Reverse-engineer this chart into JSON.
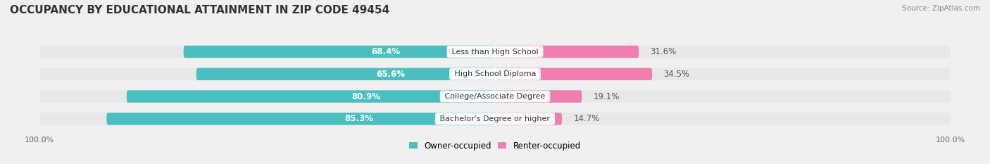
{
  "title": "OCCUPANCY BY EDUCATIONAL ATTAINMENT IN ZIP CODE 49454",
  "source": "Source: ZipAtlas.com",
  "categories": [
    "Less than High School",
    "High School Diploma",
    "College/Associate Degree",
    "Bachelor's Degree or higher"
  ],
  "owner_pct": [
    68.4,
    65.6,
    80.9,
    85.3
  ],
  "renter_pct": [
    31.6,
    34.5,
    19.1,
    14.7
  ],
  "owner_color": "#4BBFBF",
  "renter_color": "#F07EB0",
  "bg_color": "#f0f0f0",
  "bar_bg_color": "#e8e8e8",
  "title_fontsize": 11,
  "label_fontsize": 8.5,
  "axis_label_fontsize": 8,
  "legend_fontsize": 8.5,
  "bar_height": 0.55,
  "x_left_label": "100.0%",
  "x_right_label": "100.0%"
}
